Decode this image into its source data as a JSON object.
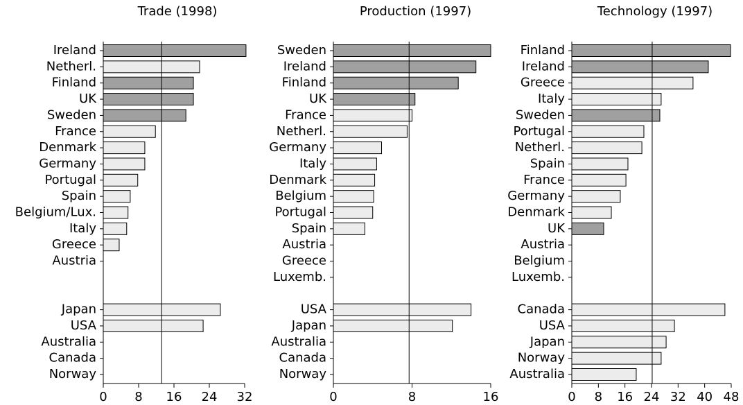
{
  "chart_data": [
    {
      "type": "bar",
      "orientation": "horizontal",
      "title": "Trade (1998)",
      "categories": [
        "Ireland",
        "Netherl.",
        "Finland",
        "UK",
        "Sweden",
        "France",
        "Denmark",
        "Germany",
        "Portugal",
        "Spain",
        "Belgium/Lux.",
        "Italy",
        "Greece",
        "Austria",
        null,
        null,
        "Japan",
        "USA",
        "Australia",
        "Canada",
        "Norway"
      ],
      "values": [
        32.3,
        21.8,
        20.4,
        20.4,
        18.7,
        11.8,
        9.4,
        9.4,
        7.8,
        6.1,
        5.6,
        5.3,
        3.6,
        null,
        null,
        null,
        26.5,
        22.6,
        null,
        null,
        null
      ],
      "colors": [
        "#a0a0a0",
        "#ececec",
        "#a0a0a0",
        "#a0a0a0",
        "#a0a0a0",
        "#ececec",
        "#ececec",
        "#ececec",
        "#ececec",
        "#ececec",
        "#ececec",
        "#ececec",
        "#ececec",
        null,
        null,
        null,
        "#ececec",
        "#ececec",
        null,
        null,
        null
      ],
      "reference_line": 13.2,
      "xlim": [
        0,
        32
      ],
      "xticks": [
        0,
        8,
        16,
        24,
        32
      ]
    },
    {
      "type": "bar",
      "orientation": "horizontal",
      "title": "Production (1997)",
      "categories": [
        "Sweden",
        "Ireland",
        "Finland",
        "UK",
        "France",
        "Netherl.",
        "Germany",
        "Italy",
        "Denmark",
        "Belgium",
        "Portugal",
        "Spain",
        "Austria",
        "Greece",
        "Luxemb.",
        null,
        "USA",
        "Japan",
        "Australia",
        "Canada",
        "Norway"
      ],
      "values": [
        16.0,
        14.5,
        12.7,
        8.3,
        8.0,
        7.5,
        4.9,
        4.4,
        4.2,
        4.1,
        4.0,
        3.2,
        null,
        null,
        null,
        null,
        14.0,
        12.1,
        null,
        null,
        null
      ],
      "colors": [
        "#a0a0a0",
        "#a0a0a0",
        "#a0a0a0",
        "#a0a0a0",
        "#ececec",
        "#ececec",
        "#ececec",
        "#ececec",
        "#ececec",
        "#ececec",
        "#ececec",
        "#ececec",
        null,
        null,
        null,
        null,
        "#ececec",
        "#ececec",
        null,
        null,
        null
      ],
      "reference_line": 7.7,
      "xlim": [
        0,
        16
      ],
      "xticks": [
        0,
        8,
        16
      ]
    },
    {
      "type": "bar",
      "orientation": "horizontal",
      "title": "Technology (1997)",
      "categories": [
        "Finland",
        "Ireland",
        "Greece",
        "Italy",
        "Sweden",
        "Portugal",
        "Netherl.",
        "Spain",
        "France",
        "Germany",
        "Denmark",
        "UK",
        "Austria",
        "Belgium",
        "Luxemb.",
        null,
        "Canada",
        "USA",
        "Japan",
        "Norway",
        "Australia"
      ],
      "values": [
        47.8,
        41.1,
        36.5,
        26.9,
        26.5,
        21.7,
        21.1,
        16.9,
        16.3,
        14.6,
        11.9,
        9.6,
        null,
        null,
        null,
        null,
        46.1,
        30.9,
        28.4,
        26.9,
        19.4
      ],
      "colors": [
        "#a0a0a0",
        "#a0a0a0",
        "#ececec",
        "#ececec",
        "#a0a0a0",
        "#ececec",
        "#ececec",
        "#ececec",
        "#ececec",
        "#ececec",
        "#ececec",
        "#a0a0a0",
        null,
        null,
        null,
        null,
        "#ececec",
        "#ececec",
        "#ececec",
        "#ececec",
        "#ececec"
      ],
      "reference_line": 24.2,
      "xlim": [
        0,
        48
      ],
      "xticks": [
        0,
        8,
        16,
        24,
        32,
        40,
        48
      ]
    }
  ]
}
